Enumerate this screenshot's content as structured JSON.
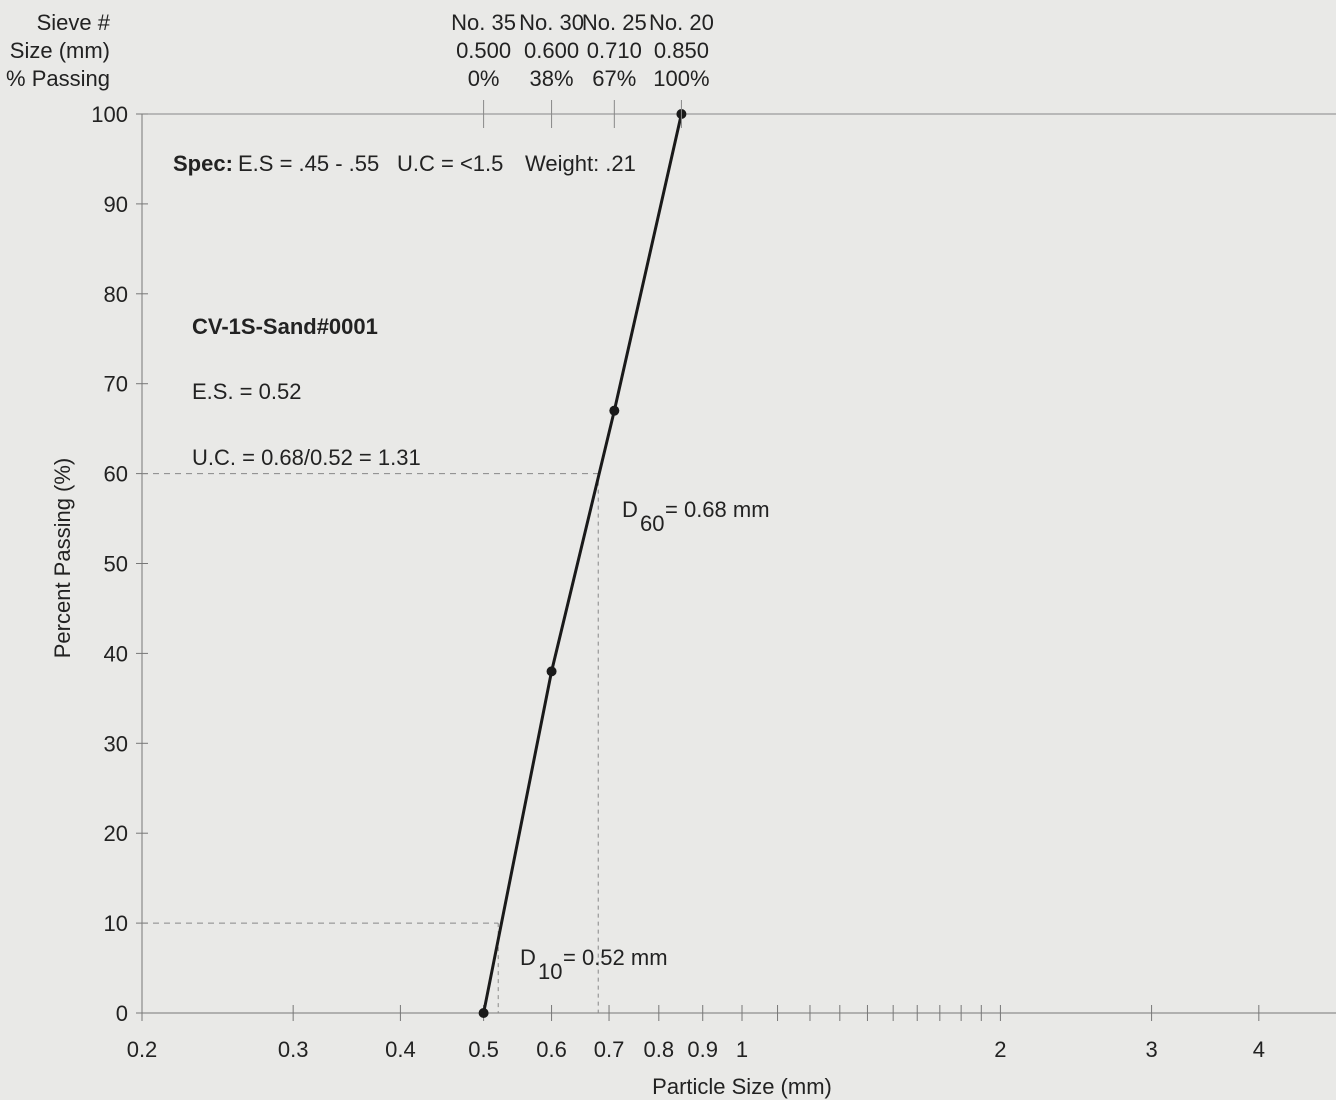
{
  "chart_data": {
    "type": "line",
    "x_label": "Particle Size (mm)",
    "y_label": "Percent Passing (%)",
    "header_labels": [
      "Sieve #",
      "Size (mm)",
      "% Passing"
    ],
    "sieve_names": [
      "No. 35",
      "No. 30",
      "No. 25",
      "No. 20"
    ],
    "series": [
      {
        "name": "CV-1S-Sand#0001",
        "color": "#1a1a1a",
        "x": [
          0.5,
          0.6,
          0.71,
          0.85
        ],
        "x_labels": [
          "0.500",
          "0.600",
          "0.710",
          "0.850"
        ],
        "values": [
          0,
          38,
          67,
          100
        ],
        "value_labels": [
          "0%",
          "38%",
          "67%",
          "100%"
        ]
      }
    ],
    "log_x": true,
    "xlim": [
      0.2,
      4.92
    ],
    "xticks": [
      0.2,
      0.3,
      0.4,
      0.5,
      0.6,
      0.7,
      0.8,
      0.9,
      1,
      2,
      3,
      4
    ],
    "xminorticks": [
      1.1,
      1.2,
      1.3,
      1.4,
      1.5,
      1.6,
      1.7,
      1.8,
      1.9
    ],
    "ylim": [
      0,
      100
    ],
    "yticks": [
      0,
      10,
      20,
      30,
      40,
      50,
      60,
      70,
      80,
      90,
      100
    ],
    "spec": [
      "Spec:",
      "E.S = .45 - .55",
      "U.C = <1.5",
      "Weight: .21"
    ],
    "notes": [
      "E.S. = 0.52",
      "U.C. = 0.68/0.52 = 1.31"
    ],
    "reference_lines": [
      {
        "x": 0.68,
        "y": 60,
        "symbol": "D",
        "subscript": "60",
        "text": "= 0.68 mm"
      },
      {
        "x": 0.52,
        "y": 10,
        "symbol": "D",
        "subscript": "10",
        "text": "= 0.52 mm"
      }
    ]
  }
}
